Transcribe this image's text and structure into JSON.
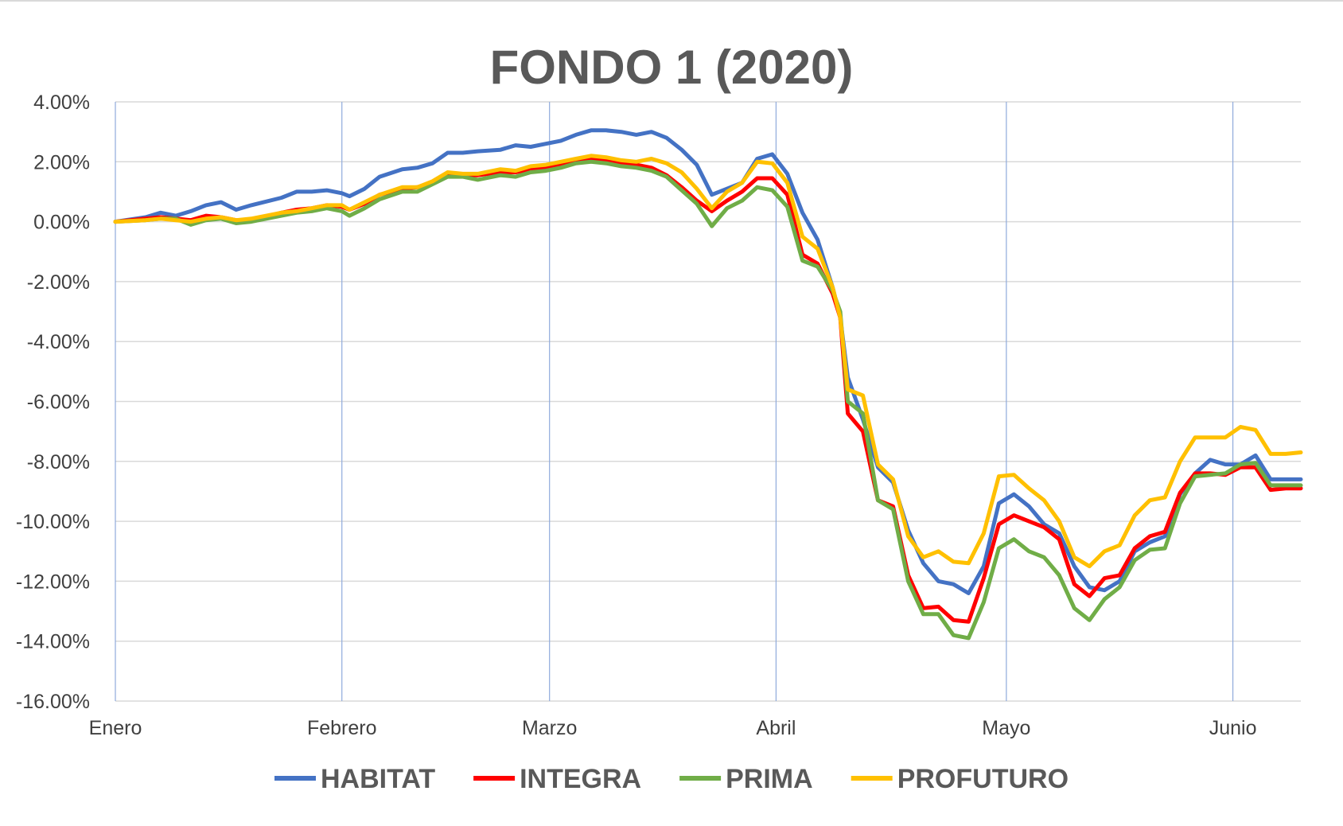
{
  "chart_data": {
    "type": "line",
    "title": "FONDO 1 (2020)",
    "xlabel": "",
    "ylabel": "",
    "ylim": [
      -16,
      4
    ],
    "y_ticks": [
      4,
      2,
      0,
      -2,
      -4,
      -6,
      -8,
      -10,
      -12,
      -14,
      -16
    ],
    "y_tick_labels": [
      "4.00%",
      "2.00%",
      "0.00%",
      "-2.00%",
      "-4.00%",
      "-6.00%",
      "-8.00%",
      "-10.00%",
      "-12.00%",
      "-14.00%",
      "-16.00%"
    ],
    "x_labels": [
      "Enero",
      "Febrero",
      "Marzo",
      "Abril",
      "Mayo",
      "Junio"
    ],
    "x_label_positions": [
      0,
      30,
      57.5,
      87.5,
      118,
      148
    ],
    "x_range": [
      0,
      157
    ],
    "grid": true,
    "legend_position": "bottom",
    "series": [
      {
        "name": "HABITAT",
        "color": "#4472C4",
        "points": [
          [
            0,
            0
          ],
          [
            4,
            0.15
          ],
          [
            6,
            0.3
          ],
          [
            8,
            0.2
          ],
          [
            10,
            0.35
          ],
          [
            12,
            0.55
          ],
          [
            14,
            0.65
          ],
          [
            16,
            0.4
          ],
          [
            18,
            0.55
          ],
          [
            22,
            0.8
          ],
          [
            24,
            1.0
          ],
          [
            26,
            1.0
          ],
          [
            28,
            1.05
          ],
          [
            30,
            0.95
          ],
          [
            31,
            0.85
          ],
          [
            33,
            1.1
          ],
          [
            35,
            1.5
          ],
          [
            38,
            1.75
          ],
          [
            40,
            1.8
          ],
          [
            42,
            1.95
          ],
          [
            44,
            2.3
          ],
          [
            46,
            2.3
          ],
          [
            48,
            2.35
          ],
          [
            51,
            2.4
          ],
          [
            53,
            2.55
          ],
          [
            55,
            2.5
          ],
          [
            57,
            2.6
          ],
          [
            59,
            2.7
          ],
          [
            61,
            2.9
          ],
          [
            63,
            3.05
          ],
          [
            65,
            3.05
          ],
          [
            67,
            3.0
          ],
          [
            69,
            2.9
          ],
          [
            71,
            3.0
          ],
          [
            73,
            2.8
          ],
          [
            75,
            2.4
          ],
          [
            77,
            1.9
          ],
          [
            79,
            0.9
          ],
          [
            81,
            1.1
          ],
          [
            83,
            1.3
          ],
          [
            85,
            2.1
          ],
          [
            87,
            2.25
          ],
          [
            89,
            1.6
          ],
          [
            91,
            0.3
          ],
          [
            93,
            -0.6
          ],
          [
            95,
            -2.2
          ],
          [
            96,
            -3.2
          ],
          [
            97,
            -5.2
          ],
          [
            99,
            -6.6
          ],
          [
            101,
            -8.2
          ],
          [
            103,
            -8.7
          ],
          [
            105,
            -10.3
          ],
          [
            107,
            -11.4
          ],
          [
            109,
            -12.0
          ],
          [
            111,
            -12.1
          ],
          [
            113,
            -12.4
          ],
          [
            115,
            -11.5
          ],
          [
            117,
            -9.4
          ],
          [
            119,
            -9.1
          ],
          [
            121,
            -9.5
          ],
          [
            123,
            -10.1
          ],
          [
            125,
            -10.4
          ],
          [
            127,
            -11.5
          ],
          [
            129,
            -12.2
          ],
          [
            131,
            -12.3
          ],
          [
            133,
            -12.0
          ],
          [
            135,
            -11.0
          ],
          [
            137,
            -10.7
          ],
          [
            139,
            -10.5
          ],
          [
            141,
            -9.1
          ],
          [
            143,
            -8.4
          ],
          [
            145,
            -7.95
          ],
          [
            147,
            -8.1
          ],
          [
            149,
            -8.1
          ],
          [
            151,
            -7.8
          ],
          [
            153,
            -8.6
          ],
          [
            155,
            -8.6
          ],
          [
            157,
            -8.6
          ]
        ]
      },
      {
        "name": "INTEGRA",
        "color": "#FF0000",
        "points": [
          [
            0,
            0
          ],
          [
            4,
            0.1
          ],
          [
            6,
            0.15
          ],
          [
            8,
            0.1
          ],
          [
            10,
            0.05
          ],
          [
            12,
            0.2
          ],
          [
            14,
            0.15
          ],
          [
            16,
            0.05
          ],
          [
            18,
            0.05
          ],
          [
            22,
            0.3
          ],
          [
            24,
            0.4
          ],
          [
            26,
            0.45
          ],
          [
            28,
            0.55
          ],
          [
            30,
            0.5
          ],
          [
            31,
            0.4
          ],
          [
            33,
            0.6
          ],
          [
            35,
            0.9
          ],
          [
            38,
            1.1
          ],
          [
            40,
            1.15
          ],
          [
            42,
            1.3
          ],
          [
            44,
            1.55
          ],
          [
            46,
            1.55
          ],
          [
            48,
            1.55
          ],
          [
            51,
            1.65
          ],
          [
            53,
            1.65
          ],
          [
            55,
            1.75
          ],
          [
            57,
            1.8
          ],
          [
            59,
            1.9
          ],
          [
            61,
            2.05
          ],
          [
            63,
            2.1
          ],
          [
            65,
            2.05
          ],
          [
            67,
            1.95
          ],
          [
            69,
            1.9
          ],
          [
            71,
            1.8
          ],
          [
            73,
            1.55
          ],
          [
            75,
            1.15
          ],
          [
            77,
            0.7
          ],
          [
            79,
            0.35
          ],
          [
            81,
            0.7
          ],
          [
            83,
            1.0
          ],
          [
            85,
            1.45
          ],
          [
            87,
            1.45
          ],
          [
            89,
            0.9
          ],
          [
            91,
            -1.1
          ],
          [
            93,
            -1.4
          ],
          [
            95,
            -2.4
          ],
          [
            96,
            -3.2
          ],
          [
            97,
            -6.4
          ],
          [
            99,
            -7.0
          ],
          [
            101,
            -9.3
          ],
          [
            103,
            -9.5
          ],
          [
            105,
            -11.8
          ],
          [
            107,
            -12.9
          ],
          [
            109,
            -12.85
          ],
          [
            111,
            -13.3
          ],
          [
            113,
            -13.35
          ],
          [
            115,
            -11.9
          ],
          [
            117,
            -10.1
          ],
          [
            119,
            -9.8
          ],
          [
            121,
            -10.0
          ],
          [
            123,
            -10.2
          ],
          [
            125,
            -10.6
          ],
          [
            127,
            -12.1
          ],
          [
            129,
            -12.5
          ],
          [
            131,
            -11.9
          ],
          [
            133,
            -11.8
          ],
          [
            135,
            -10.9
          ],
          [
            137,
            -10.5
          ],
          [
            139,
            -10.35
          ],
          [
            141,
            -9.05
          ],
          [
            143,
            -8.4
          ],
          [
            145,
            -8.4
          ],
          [
            147,
            -8.45
          ],
          [
            149,
            -8.2
          ],
          [
            151,
            -8.2
          ],
          [
            153,
            -8.95
          ],
          [
            155,
            -8.9
          ],
          [
            157,
            -8.9
          ]
        ]
      },
      {
        "name": "PRIMA",
        "color": "#70AD47",
        "points": [
          [
            0,
            0
          ],
          [
            4,
            0.05
          ],
          [
            6,
            0.1
          ],
          [
            8,
            0.1
          ],
          [
            10,
            -0.1
          ],
          [
            12,
            0.05
          ],
          [
            14,
            0.1
          ],
          [
            16,
            -0.05
          ],
          [
            18,
            0.0
          ],
          [
            22,
            0.2
          ],
          [
            24,
            0.3
          ],
          [
            26,
            0.35
          ],
          [
            28,
            0.45
          ],
          [
            30,
            0.35
          ],
          [
            31,
            0.2
          ],
          [
            33,
            0.45
          ],
          [
            35,
            0.75
          ],
          [
            38,
            1.0
          ],
          [
            40,
            1.0
          ],
          [
            42,
            1.25
          ],
          [
            44,
            1.5
          ],
          [
            46,
            1.5
          ],
          [
            48,
            1.4
          ],
          [
            51,
            1.55
          ],
          [
            53,
            1.5
          ],
          [
            55,
            1.65
          ],
          [
            57,
            1.7
          ],
          [
            59,
            1.8
          ],
          [
            61,
            1.95
          ],
          [
            63,
            2.0
          ],
          [
            65,
            1.95
          ],
          [
            67,
            1.85
          ],
          [
            69,
            1.8
          ],
          [
            71,
            1.7
          ],
          [
            73,
            1.5
          ],
          [
            75,
            1.05
          ],
          [
            77,
            0.6
          ],
          [
            79,
            -0.15
          ],
          [
            81,
            0.45
          ],
          [
            83,
            0.7
          ],
          [
            85,
            1.15
          ],
          [
            87,
            1.05
          ],
          [
            89,
            0.5
          ],
          [
            91,
            -1.3
          ],
          [
            93,
            -1.5
          ],
          [
            95,
            -2.3
          ],
          [
            96,
            -3.0
          ],
          [
            97,
            -6.0
          ],
          [
            99,
            -6.4
          ],
          [
            101,
            -9.3
          ],
          [
            103,
            -9.6
          ],
          [
            105,
            -12.0
          ],
          [
            107,
            -13.1
          ],
          [
            109,
            -13.1
          ],
          [
            111,
            -13.8
          ],
          [
            113,
            -13.9
          ],
          [
            115,
            -12.7
          ],
          [
            117,
            -10.9
          ],
          [
            119,
            -10.6
          ],
          [
            121,
            -11.0
          ],
          [
            123,
            -11.2
          ],
          [
            125,
            -11.8
          ],
          [
            127,
            -12.9
          ],
          [
            129,
            -13.3
          ],
          [
            131,
            -12.6
          ],
          [
            133,
            -12.2
          ],
          [
            135,
            -11.3
          ],
          [
            137,
            -10.95
          ],
          [
            139,
            -10.9
          ],
          [
            141,
            -9.4
          ],
          [
            143,
            -8.5
          ],
          [
            145,
            -8.45
          ],
          [
            147,
            -8.4
          ],
          [
            149,
            -8.1
          ],
          [
            151,
            -8.05
          ],
          [
            153,
            -8.8
          ],
          [
            155,
            -8.8
          ],
          [
            157,
            -8.8
          ]
        ]
      },
      {
        "name": "PROFUTURO",
        "color": "#FFC000",
        "points": [
          [
            0,
            0
          ],
          [
            4,
            0.05
          ],
          [
            6,
            0.1
          ],
          [
            8,
            0.05
          ],
          [
            10,
            0.0
          ],
          [
            12,
            0.1
          ],
          [
            14,
            0.15
          ],
          [
            16,
            0.05
          ],
          [
            18,
            0.1
          ],
          [
            22,
            0.3
          ],
          [
            24,
            0.35
          ],
          [
            26,
            0.45
          ],
          [
            28,
            0.55
          ],
          [
            30,
            0.55
          ],
          [
            31,
            0.4
          ],
          [
            33,
            0.65
          ],
          [
            35,
            0.9
          ],
          [
            38,
            1.15
          ],
          [
            40,
            1.15
          ],
          [
            42,
            1.35
          ],
          [
            44,
            1.65
          ],
          [
            46,
            1.6
          ],
          [
            48,
            1.6
          ],
          [
            51,
            1.75
          ],
          [
            53,
            1.7
          ],
          [
            55,
            1.85
          ],
          [
            57,
            1.9
          ],
          [
            59,
            2.0
          ],
          [
            61,
            2.1
          ],
          [
            63,
            2.2
          ],
          [
            65,
            2.15
          ],
          [
            67,
            2.05
          ],
          [
            69,
            2.0
          ],
          [
            71,
            2.1
          ],
          [
            73,
            1.95
          ],
          [
            75,
            1.65
          ],
          [
            77,
            1.1
          ],
          [
            79,
            0.45
          ],
          [
            81,
            1.0
          ],
          [
            83,
            1.3
          ],
          [
            85,
            2.0
          ],
          [
            87,
            1.95
          ],
          [
            89,
            1.3
          ],
          [
            91,
            -0.5
          ],
          [
            93,
            -0.9
          ],
          [
            95,
            -2.2
          ],
          [
            96,
            -3.2
          ],
          [
            97,
            -5.6
          ],
          [
            99,
            -5.8
          ],
          [
            101,
            -8.1
          ],
          [
            103,
            -8.6
          ],
          [
            105,
            -10.5
          ],
          [
            107,
            -11.2
          ],
          [
            109,
            -11.0
          ],
          [
            111,
            -11.35
          ],
          [
            113,
            -11.4
          ],
          [
            115,
            -10.4
          ],
          [
            117,
            -8.5
          ],
          [
            119,
            -8.45
          ],
          [
            121,
            -8.9
          ],
          [
            123,
            -9.3
          ],
          [
            125,
            -10.0
          ],
          [
            127,
            -11.2
          ],
          [
            129,
            -11.5
          ],
          [
            131,
            -11.0
          ],
          [
            133,
            -10.8
          ],
          [
            135,
            -9.8
          ],
          [
            137,
            -9.3
          ],
          [
            139,
            -9.2
          ],
          [
            141,
            -8.0
          ],
          [
            143,
            -7.2
          ],
          [
            145,
            -7.2
          ],
          [
            147,
            -7.2
          ],
          [
            149,
            -6.85
          ],
          [
            151,
            -6.95
          ],
          [
            153,
            -7.75
          ],
          [
            155,
            -7.75
          ],
          [
            157,
            -7.7
          ]
        ]
      }
    ]
  }
}
